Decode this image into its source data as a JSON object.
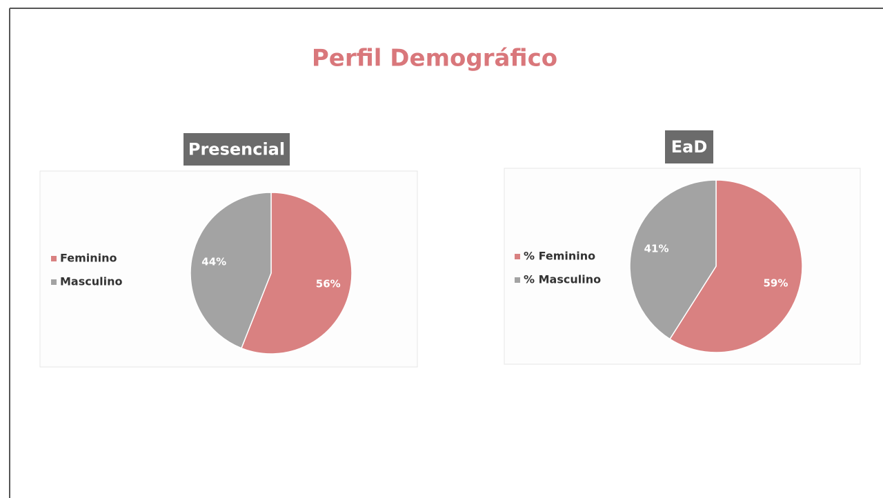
{
  "title": "Perfil Demográfico",
  "chart_data": [
    {
      "type": "pie",
      "title": "Presencial",
      "categories": [
        "Feminino",
        "Masculino"
      ],
      "values": [
        56,
        44
      ],
      "value_labels": [
        "56%",
        "44%"
      ],
      "colors": [
        "#d98181",
        "#a3a3a3"
      ],
      "legend": "left"
    },
    {
      "type": "pie",
      "title": "EaD",
      "categories": [
        "% Feminino",
        "% Masculino"
      ],
      "values": [
        59,
        41
      ],
      "value_labels": [
        "59%",
        "41%"
      ],
      "colors": [
        "#d98181",
        "#a3a3a3"
      ],
      "legend": "left"
    }
  ]
}
